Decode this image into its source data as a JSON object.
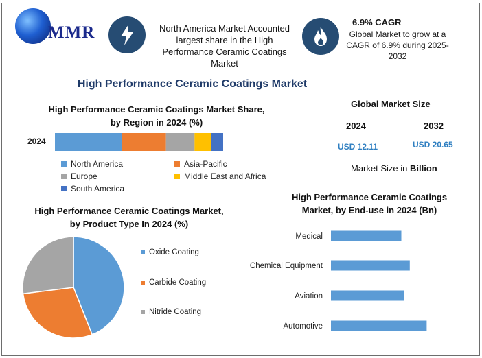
{
  "brand": {
    "name": "MMR"
  },
  "header": {
    "fact1": "North America Market Accounted largest share in the High Performance Ceramic Coatings Market",
    "cagr_title": "6.9% CAGR",
    "cagr_text": "Global Market to grow at a CAGR of 6.9% during 2025-2032"
  },
  "title": "High Performance Ceramic Coatings Market",
  "market_size": {
    "title": "Global Market Size",
    "years": [
      "2024",
      "2032"
    ],
    "values": [
      "USD 12.11",
      "USD 20.65"
    ],
    "note_prefix": "Market Size in ",
    "note_unit": "Billion"
  },
  "colors": {
    "north_america": "#5b9bd5",
    "asia_pacific": "#ed7d31",
    "europe": "#a5a5a5",
    "middle_east_africa": "#ffc000",
    "south_america": "#4472c4",
    "header_circle": "#264c73",
    "title": "#1f3a68",
    "usd": "#2f7fc1"
  },
  "icons": [
    "globe-logo-icon",
    "lightning-icon",
    "flame-icon"
  ],
  "chart_data": [
    {
      "type": "bar",
      "orientation": "horizontal-stacked",
      "title": "High Performance Ceramic Coatings Market Share, by Region in 2024 (%)",
      "categories": [
        "2024"
      ],
      "series": [
        {
          "name": "North America",
          "values": [
            40
          ]
        },
        {
          "name": "Asia-Pacific",
          "values": [
            26
          ]
        },
        {
          "name": "Europe",
          "values": [
            17
          ]
        },
        {
          "name": "Middle East and Africa",
          "values": [
            10
          ]
        },
        {
          "name": "South America",
          "values": [
            7
          ]
        }
      ],
      "xlim": [
        0,
        100
      ],
      "grid": false,
      "legend": "bottom"
    },
    {
      "type": "pie",
      "title": "High Performance Ceramic Coatings Market, by Product Type In 2024 (%)",
      "labels": [
        "Oxide Coating",
        "Carbide Coating",
        "Nitride Coating"
      ],
      "values": [
        44,
        29,
        27
      ],
      "legend": "right"
    },
    {
      "type": "bar",
      "orientation": "horizontal",
      "title": "High Performance Ceramic Coatings Market, by End-use in 2024 (Bn)",
      "categories": [
        "Medical",
        "Chemical Equipment",
        "Aviation",
        "Automotive"
      ],
      "values": [
        2.5,
        2.8,
        2.6,
        3.4
      ],
      "xlim": [
        0,
        5
      ],
      "grid": false
    }
  ]
}
